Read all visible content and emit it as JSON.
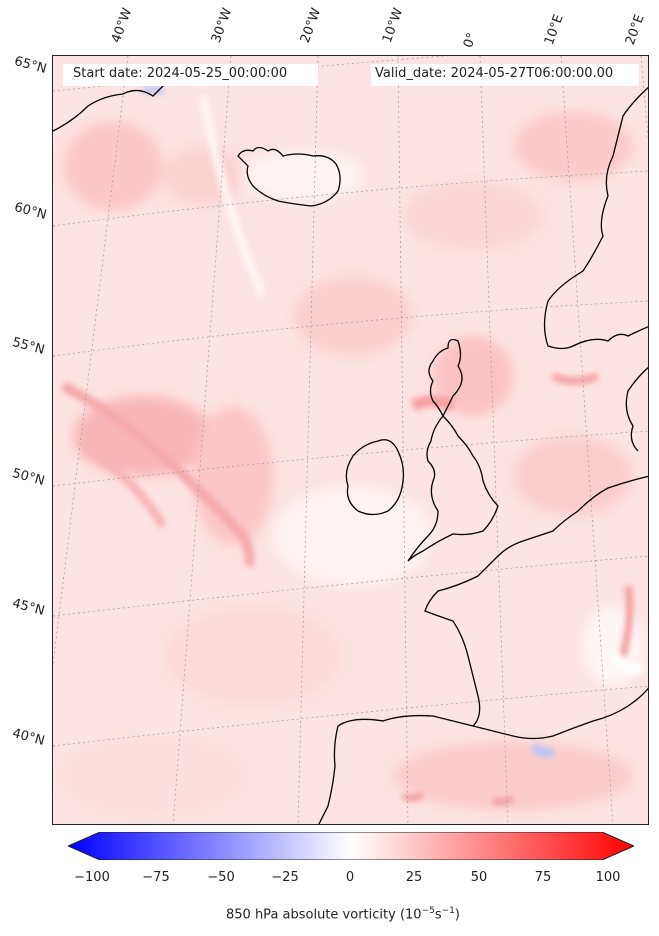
{
  "header": {
    "start_date": "Start date: 2024-05-25_00:00:00",
    "valid_date": "Valid_date: 2024-05-27T06:00:00.00"
  },
  "longitude_labels": [
    "40°W",
    "30°W",
    "20°W",
    "10°W",
    "0°",
    "10°E",
    "20°E"
  ],
  "latitude_labels": [
    "65°N",
    "60°N",
    "55°N",
    "50°N",
    "45°N",
    "40°N"
  ],
  "colorbar": {
    "label_prefix": "850 hPa absolute vorticity (10",
    "label_exp1": "−5",
    "label_mid": "s",
    "label_exp2": "−1",
    "label_suffix": ")",
    "ticks": [
      "−100",
      "−75",
      "−50",
      "−25",
      "0",
      "25",
      "50",
      "75",
      "100"
    ],
    "min_color": "#0000ff",
    "mid_color": "#ffffff",
    "max_color": "#ff0000"
  },
  "colors": {
    "background_field": "#fde4e4",
    "coastline": "#000000",
    "gridline": "#9a9a9a"
  }
}
